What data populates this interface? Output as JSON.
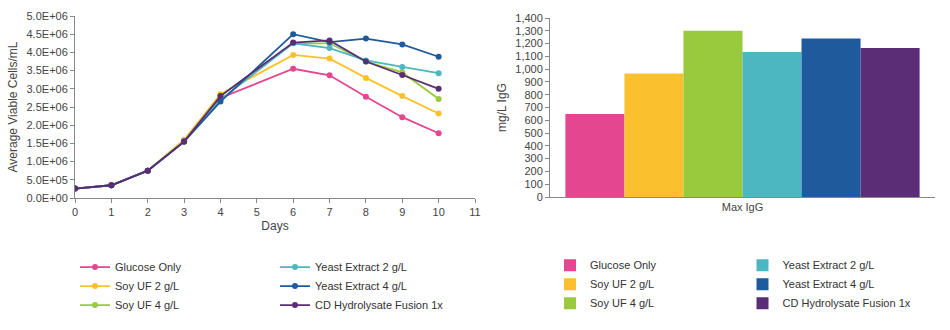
{
  "chart_data": [
    {
      "type": "line",
      "x_label": "Days",
      "y_label": "Average Viable Cells/mL",
      "x": [
        0,
        1,
        2,
        3,
        4,
        6,
        7,
        8,
        9,
        10
      ],
      "xlim": [
        0,
        11
      ],
      "xticks": [
        0,
        1,
        2,
        3,
        4,
        5,
        6,
        7,
        8,
        9,
        10,
        11
      ],
      "ylim": [
        0,
        5000000
      ],
      "yticks": [
        {
          "value": 0,
          "label": "0.0E+00"
        },
        {
          "value": 500000,
          "label": "5.0E+05"
        },
        {
          "value": 1000000,
          "label": "1.0E+06"
        },
        {
          "value": 1500000,
          "label": "1.5E+06"
        },
        {
          "value": 2000000,
          "label": "2.0E+06"
        },
        {
          "value": 2500000,
          "label": "2.5E+06"
        },
        {
          "value": 3000000,
          "label": "3.0E+06"
        },
        {
          "value": 3500000,
          "label": "3.5E+06"
        },
        {
          "value": 4000000,
          "label": "4.0E+06"
        },
        {
          "value": 4500000,
          "label": "4.5E+06"
        },
        {
          "value": 5000000,
          "label": "5.0E+06"
        }
      ],
      "grid": false,
      "legend": "bottom",
      "marker": "circle",
      "line_style": "solid",
      "series": [
        {
          "name": "Glucose Only",
          "color": "#e4468f",
          "values": [
            260000,
            350000,
            750000,
            1550000,
            2750000,
            3550000,
            3370000,
            2780000,
            2220000,
            1780000
          ]
        },
        {
          "name": "Soy UF 2 g/L",
          "color": "#fbc02d",
          "values": [
            260000,
            350000,
            750000,
            1600000,
            2850000,
            3930000,
            3830000,
            3300000,
            2800000,
            2320000
          ]
        },
        {
          "name": "Soy UF 4 g/L",
          "color": "#99c93c",
          "values": [
            260000,
            350000,
            750000,
            1550000,
            2800000,
            4250000,
            4250000,
            3750000,
            3450000,
            2720000
          ]
        },
        {
          "name": "Yeast Extract 2 g/L",
          "color": "#4cb6c1",
          "values": [
            260000,
            350000,
            750000,
            1550000,
            2700000,
            4250000,
            4120000,
            3780000,
            3600000,
            3430000
          ]
        },
        {
          "name": "Yeast Extract 4 g/L",
          "color": "#1e5a9c",
          "values": [
            260000,
            350000,
            750000,
            1550000,
            2650000,
            4500000,
            4280000,
            4380000,
            4220000,
            3880000
          ]
        },
        {
          "name": "CD Hydrolysate Fusion 1x",
          "color": "#5c2d77",
          "values": [
            260000,
            350000,
            750000,
            1550000,
            2800000,
            4270000,
            4330000,
            3750000,
            3380000,
            3000000
          ]
        }
      ]
    },
    {
      "type": "bar",
      "y_label": "mg/L IgG",
      "categories": [
        "Max IgG"
      ],
      "ylim": [
        0,
        1400
      ],
      "yticks": [
        0,
        100,
        200,
        300,
        400,
        500,
        600,
        700,
        800,
        900,
        {
          "value": 1000,
          "label": "1,000"
        },
        {
          "value": 1100,
          "label": "1,100"
        },
        {
          "value": 1200,
          "label": "1,200"
        },
        {
          "value": 1300,
          "label": "1,300"
        },
        {
          "value": 1400,
          "label": "1,400"
        }
      ],
      "grid": false,
      "legend": "bottom",
      "series": [
        {
          "name": "Glucose Only",
          "color": "#e4468f",
          "values": [
            650
          ]
        },
        {
          "name": "Soy UF 2 g/L",
          "color": "#fbc02d",
          "values": [
            965
          ]
        },
        {
          "name": "Soy UF 4 g/L",
          "color": "#99c93c",
          "values": [
            1300
          ]
        },
        {
          "name": "Yeast Extract 2 g/L",
          "color": "#4cb6c1",
          "values": [
            1135
          ]
        },
        {
          "name": "Yeast Extract 4 g/L",
          "color": "#1e5a9c",
          "values": [
            1240
          ]
        },
        {
          "name": "CD Hydrolysate Fusion 1x",
          "color": "#5c2d77",
          "values": [
            1165
          ]
        }
      ]
    }
  ]
}
